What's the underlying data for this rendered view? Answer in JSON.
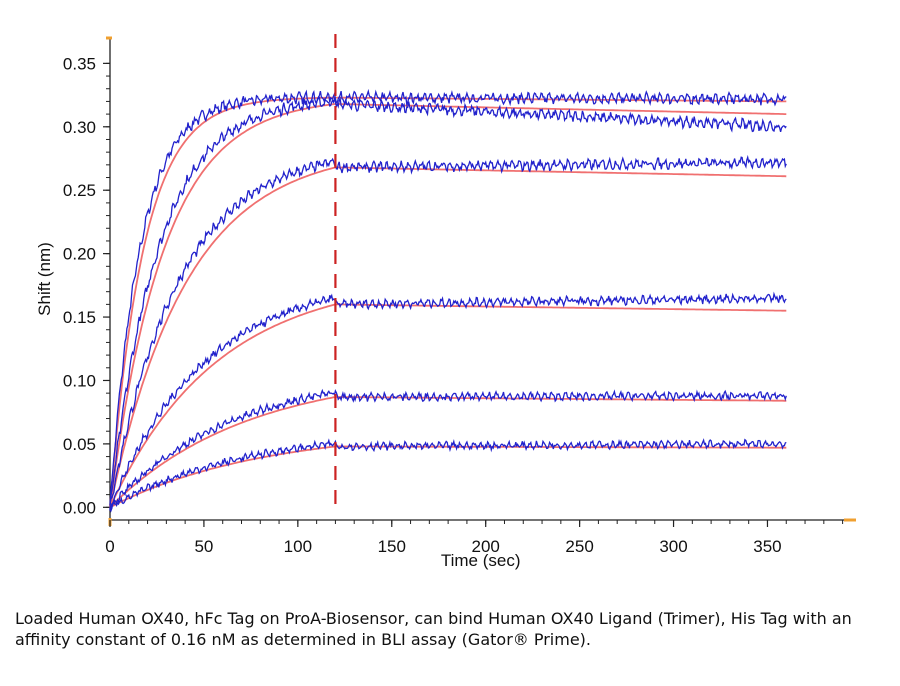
{
  "caption": "Loaded Human OX40, hFc Tag on ProA-Biosensor, can bind Human OX40 Ligand (Trimer), His Tag with an affinity constant of 0.16 nM as determined in BLI assay (Gator® Prime).",
  "chart_data": {
    "type": "line",
    "xlabel": "Time (sec)",
    "ylabel": "Shift (nm)",
    "xlim": [
      0,
      395
    ],
    "ylim": [
      -0.01,
      0.37
    ],
    "x_ticks": [
      "0",
      "50",
      "100",
      "150",
      "200",
      "250",
      "300",
      "350"
    ],
    "y_ticks": [
      "0.00",
      "0.05",
      "0.10",
      "0.15",
      "0.20",
      "0.25",
      "0.30",
      "0.35"
    ],
    "dissociation_start_x": 120,
    "x_end": 360,
    "grid": false,
    "colors": {
      "measured": "#2222cc",
      "fit": "#f07070",
      "marker_line": "#cc2222",
      "axis_accent": "#f0a030"
    },
    "series": [
      {
        "plateau_at_120": 0.323,
        "final": 0.32,
        "measured_final": 0.322,
        "measured_initial_slope": 0.018
      },
      {
        "plateau_at_120": 0.318,
        "final": 0.31,
        "measured_final": 0.3,
        "measured_initial_slope": 0.011
      },
      {
        "plateau_at_120": 0.268,
        "final": 0.261,
        "measured_final": 0.272,
        "measured_initial_slope": 0.0065
      },
      {
        "plateau_at_120": 0.16,
        "final": 0.155,
        "measured_final": 0.165,
        "measured_initial_slope": 0.0028
      },
      {
        "plateau_at_120": 0.087,
        "final": 0.084,
        "measured_final": 0.088,
        "measured_initial_slope": 0.0012
      },
      {
        "plateau_at_120": 0.048,
        "final": 0.047,
        "measured_final": 0.05,
        "measured_initial_slope": 0.0006
      }
    ]
  }
}
